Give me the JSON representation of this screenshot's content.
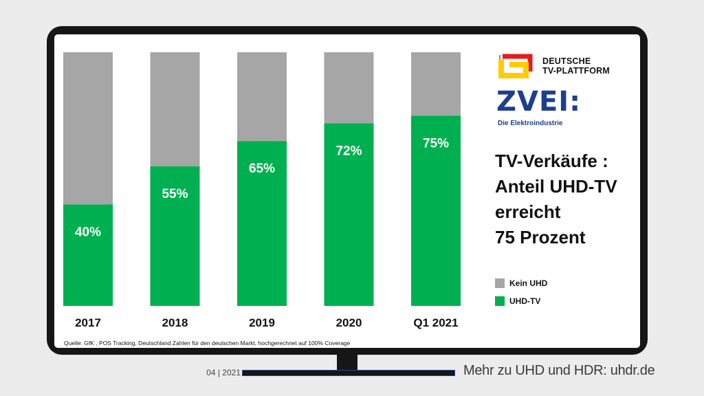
{
  "chart_data": {
    "type": "bar",
    "stacked": true,
    "stacked_to_100": true,
    "categories": [
      "2017",
      "2018",
      "2019",
      "2020",
      "Q1 2021"
    ],
    "series": [
      {
        "name": "UHD-TV",
        "values": [
          40,
          55,
          65,
          72,
          75
        ],
        "color": "#00b050"
      },
      {
        "name": "Kein UHD",
        "values": [
          60,
          45,
          35,
          28,
          25
        ],
        "color": "#a6a6a6"
      }
    ],
    "data_labels": [
      "40%",
      "55%",
      "65%",
      "72%",
      "75%"
    ],
    "ylim": [
      0,
      100
    ],
    "grid": false,
    "legend_placement": "right"
  },
  "headline": {
    "lines": [
      "TV-Verkäufe :",
      "Anteil UHD-TV",
      "erreicht",
      "75 Prozent"
    ]
  },
  "legend": {
    "items": [
      {
        "label": "Kein UHD",
        "color": "#a6a6a6"
      },
      {
        "label": "UHD-TV",
        "color": "#00b050"
      }
    ]
  },
  "source_note": "Quelle: GfK , POS Tracking, Deutschland Zahlen für den deutschen Markt, hochgerechnet auf 100% Coverage",
  "logos": {
    "dtvp": {
      "line1": "DEUTSCHE",
      "line2": "TV-PLATTFORM"
    },
    "zvei": {
      "word": "ZVEI:",
      "sub": "Die Elektroindustrie",
      "color": "#1c3f8f"
    }
  },
  "footer": {
    "date": "04 | 2021",
    "link": "Mehr zu UHD und HDR: uhdr.de"
  }
}
